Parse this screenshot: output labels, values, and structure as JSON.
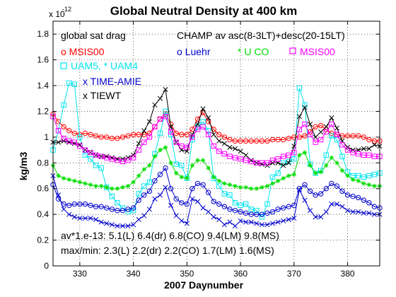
{
  "chart_data": {
    "type": "line",
    "title": "Global Neutral Density at 400 km",
    "xlabel": "2007 Daynumber",
    "ylabel": "kg/m3",
    "y_exponent_base": "x 10",
    "y_exponent_power": "-12",
    "xlim": [
      325,
      386
    ],
    "ylim": [
      0,
      1.9
    ],
    "xticks": [
      330,
      340,
      350,
      360,
      370,
      380
    ],
    "yticks": [
      0,
      0.2,
      0.4,
      0.6,
      0.8,
      1,
      1.2,
      1.4,
      1.6,
      1.8
    ],
    "grid": true,
    "x": [
      325,
      326,
      327,
      328,
      329,
      330,
      331,
      332,
      333,
      334,
      335,
      336,
      337,
      338,
      339,
      340,
      341,
      342,
      343,
      344,
      345,
      346,
      347,
      348,
      349,
      350,
      351,
      352,
      353,
      354,
      355,
      356,
      357,
      358,
      359,
      360,
      361,
      362,
      363,
      364,
      365,
      366,
      367,
      368,
      369,
      370,
      371,
      372,
      373,
      374,
      375,
      376,
      377,
      378,
      379,
      380,
      381,
      382,
      383,
      384,
      385,
      386
    ],
    "series": [
      {
        "name": "MSIS00 (global sat drag)",
        "color": "#ff0000",
        "marker": "circle",
        "values": [
          1.18,
          1.12,
          1.08,
          1.05,
          1.03,
          1.02,
          1.03,
          1.02,
          1.01,
          1.0,
          1.0,
          0.99,
          0.99,
          1.0,
          1.01,
          1.02,
          1.02,
          1.02,
          1.03,
          1.08,
          1.14,
          1.18,
          1.1,
          1.03,
          1.02,
          1.02,
          1.06,
          1.14,
          1.19,
          1.12,
          1.06,
          1.02,
          1.0,
          0.98,
          0.97,
          0.97,
          0.97,
          0.97,
          0.97,
          0.97,
          0.97,
          0.98,
          0.98,
          0.98,
          0.99,
          1.0,
          1.0,
          1.01,
          1.04,
          1.08,
          1.09,
          1.06,
          1.03,
          1.02,
          1.01,
          1.01,
          1.01,
          1.01,
          1.0,
          0.98,
          0.97,
          0.97
        ]
      },
      {
        "name": "UAM5, * UAM4",
        "color": "#00e5ee",
        "marker": "square",
        "values": [
          0.9,
          1.05,
          1.25,
          1.42,
          1.41,
          1.0,
          0.86,
          0.83,
          0.78,
          0.76,
          0.61,
          0.54,
          0.49,
          0.45,
          0.42,
          0.43,
          0.56,
          0.62,
          0.65,
          0.87,
          1.03,
          1.2,
          1.02,
          0.79,
          0.78,
          0.68,
          0.98,
          1.08,
          1.12,
          1.05,
          0.68,
          0.62,
          0.56,
          0.55,
          0.49,
          0.47,
          0.48,
          0.44,
          0.43,
          0.38,
          0.48,
          0.69,
          0.72,
          0.8,
          0.81,
          0.83,
          1.38,
          1.25,
          0.79,
          0.72,
          0.74,
          0.86,
          1.01,
          0.98,
          0.85,
          0.73,
          0.7,
          0.7,
          0.69,
          0.7,
          0.71,
          0.72
        ]
      },
      {
        "name": "TIME-AMIE",
        "color": "#0000cc",
        "marker": "x",
        "values": [
          0.7,
          0.55,
          0.44,
          0.4,
          0.38,
          0.37,
          0.37,
          0.37,
          0.36,
          0.34,
          0.33,
          0.32,
          0.31,
          0.31,
          0.31,
          0.32,
          0.36,
          0.39,
          0.44,
          0.52,
          0.55,
          0.61,
          0.47,
          0.39,
          0.35,
          0.33,
          0.52,
          0.5,
          0.45,
          0.42,
          0.38,
          0.36,
          0.32,
          0.34,
          0.31,
          0.35,
          0.34,
          0.34,
          0.33,
          0.32,
          0.32,
          0.33,
          0.34,
          0.35,
          0.36,
          0.37,
          0.59,
          0.51,
          0.43,
          0.38,
          0.38,
          0.42,
          0.48,
          0.48,
          0.46,
          0.43,
          0.42,
          0.42,
          0.41,
          0.41,
          0.4,
          0.4
        ]
      },
      {
        "name": "TIEWT",
        "color": "#000000",
        "marker": "x",
        "values": [
          0.96,
          0.96,
          0.97,
          0.96,
          0.95,
          0.94,
          0.9,
          0.88,
          0.86,
          0.85,
          0.85,
          0.84,
          0.83,
          0.83,
          0.84,
          0.86,
          0.95,
          1.05,
          1.12,
          1.25,
          1.3,
          1.37,
          1.08,
          0.96,
          0.9,
          0.89,
          1.02,
          1.1,
          1.22,
          1.15,
          1.02,
          0.97,
          0.95,
          0.92,
          0.91,
          0.89,
          0.86,
          0.82,
          0.8,
          0.79,
          0.78,
          0.8,
          0.8,
          0.78,
          0.8,
          0.93,
          1.16,
          1.23,
          1.1,
          1.0,
          1.04,
          1.08,
          1.15,
          1.07,
          0.97,
          0.92,
          0.9,
          0.9,
          0.91,
          0.91,
          0.94,
          0.93
        ]
      },
      {
        "name": "Luehr",
        "color": "#0000cc",
        "marker": "circle",
        "values": [
          0.63,
          0.52,
          0.48,
          0.47,
          0.48,
          0.48,
          0.48,
          0.47,
          0.46,
          0.46,
          0.45,
          0.44,
          0.43,
          0.43,
          0.44,
          0.45,
          0.51,
          0.55,
          0.58,
          0.66,
          0.71,
          0.76,
          0.6,
          0.52,
          0.49,
          0.48,
          0.6,
          0.64,
          0.63,
          0.57,
          0.5,
          0.48,
          0.46,
          0.44,
          0.43,
          0.42,
          0.41,
          0.4,
          0.4,
          0.4,
          0.41,
          0.42,
          0.44,
          0.45,
          0.46,
          0.47,
          0.6,
          0.63,
          0.58,
          0.55,
          0.56,
          0.6,
          0.64,
          0.62,
          0.58,
          0.55,
          0.54,
          0.53,
          0.51,
          0.49,
          0.46,
          0.45
        ]
      },
      {
        "name": "U CO",
        "color": "#00dd00",
        "marker": "star",
        "values": [
          0.78,
          0.7,
          0.68,
          0.67,
          0.66,
          0.65,
          0.64,
          0.63,
          0.62,
          0.62,
          0.61,
          0.6,
          0.6,
          0.61,
          0.62,
          0.65,
          0.7,
          0.75,
          0.78,
          0.85,
          0.9,
          0.92,
          0.8,
          0.72,
          0.69,
          0.68,
          0.78,
          0.82,
          0.82,
          0.76,
          0.69,
          0.66,
          0.64,
          0.63,
          0.62,
          0.61,
          0.61,
          0.6,
          0.6,
          0.61,
          0.62,
          0.64,
          0.66,
          0.68,
          0.7,
          0.71,
          0.86,
          0.88,
          0.78,
          0.72,
          0.73,
          0.78,
          0.84,
          0.8,
          0.74,
          0.7,
          0.67,
          0.66,
          0.64,
          0.63,
          0.62,
          0.62
        ]
      },
      {
        "name": "MSIS00 (CHAMP)",
        "color": "#ff00ff",
        "marker": "square",
        "values": [
          1.16,
          1.05,
          0.99,
          0.97,
          0.96,
          0.93,
          0.9,
          0.88,
          0.86,
          0.85,
          0.84,
          0.83,
          0.82,
          0.81,
          0.82,
          0.84,
          0.9,
          0.96,
          1.0,
          1.08,
          1.14,
          1.16,
          1.04,
          0.96,
          0.93,
          0.92,
          1.0,
          1.06,
          1.08,
          1.02,
          0.93,
          0.89,
          0.87,
          0.85,
          0.84,
          0.83,
          0.82,
          0.81,
          0.8,
          0.8,
          0.8,
          0.82,
          0.83,
          0.85,
          0.86,
          0.88,
          1.06,
          1.1,
          1.02,
          0.96,
          0.98,
          1.04,
          1.1,
          1.02,
          0.94,
          0.9,
          0.88,
          0.87,
          0.86,
          0.86,
          0.85,
          0.85
        ]
      }
    ],
    "legend": {
      "global_label": "global sat drag",
      "champ_label": "CHAMP av asc(8-3LT)+desc(20-15LT)",
      "msis_global": "o MSIS00",
      "uam": "UAM5, * UAM4",
      "time_amie": "x TIME-AMIE",
      "tiewt": "x TIEWT",
      "luehr": "o Luehr",
      "uco": "* U CO",
      "msis_champ": "MSIS00"
    },
    "annotations": {
      "averages": "av*1.e-13: 5.1(L) 6.4(dr) 6.8(CO) 9.4(LM) 9.8(MS)",
      "maxmin": "max/min: 2.3(L) 2.2(dr) 2.2(CO) 1.7(LM) 1.6(MS)"
    }
  }
}
